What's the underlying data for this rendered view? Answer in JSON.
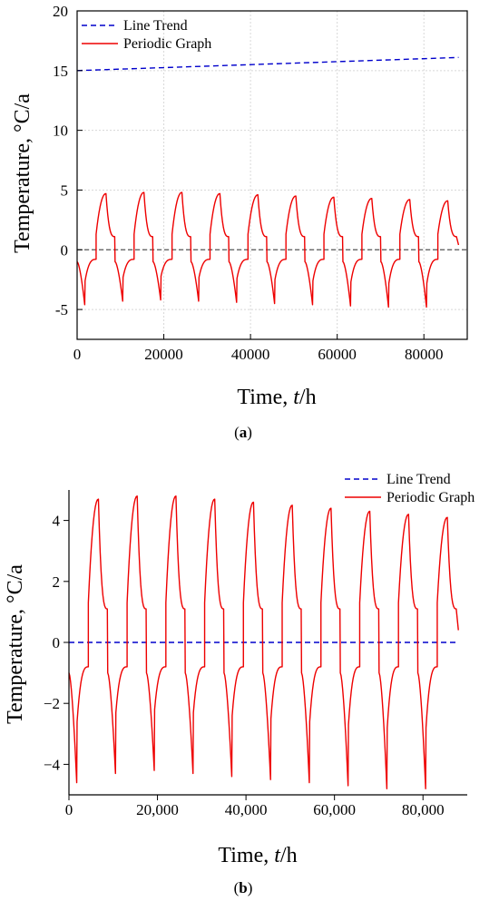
{
  "chart_data": [
    {
      "type": "line",
      "panel": "a",
      "caption_open": "(",
      "caption_letter": "a",
      "caption_close": ")",
      "xlabel_prefix": "Time, ",
      "xlabel_var": "t",
      "xlabel_suffix": "/h",
      "ylabel": "Temperature, °C/a",
      "xlim": [
        0,
        90000
      ],
      "ylim": [
        -7.5,
        20
      ],
      "xticks": [
        0,
        20000,
        40000,
        60000,
        80000
      ],
      "xtick_labels": [
        "0",
        "20000",
        "40000",
        "60000",
        "80000"
      ],
      "yticks": [
        -5,
        0,
        5,
        10,
        15,
        20
      ],
      "ytick_labels": [
        "-5",
        "0",
        "5",
        "10",
        "15",
        "20"
      ],
      "grid": true,
      "legend_position": "top-left",
      "zero_line": true,
      "colors": {
        "trend": "#0000cc",
        "periodic": "#ee0000",
        "zero": "#555555",
        "grid": "#d8d8d8"
      },
      "series": [
        {
          "name": "Line Trend",
          "style": "dashed",
          "x": [
            0,
            88000
          ],
          "y": [
            15.0,
            16.1
          ]
        },
        {
          "name": "Periodic Graph",
          "style": "solid",
          "period": 8760,
          "x_end": 88000,
          "cycle_peaks": [
            4.7,
            4.8,
            4.8,
            4.7,
            4.6,
            4.5,
            4.4,
            4.3,
            4.2,
            4.1
          ],
          "cycle_troughs": [
            -4.6,
            -4.3,
            -4.2,
            -4.3,
            -4.4,
            -4.5,
            -4.6,
            -4.7,
            -4.8,
            -4.8
          ],
          "plateau_high": 1.1,
          "plateau_low": -0.8
        }
      ]
    },
    {
      "type": "line",
      "panel": "b",
      "caption_open": "(",
      "caption_letter": "b",
      "caption_close": ")",
      "xlabel_prefix": "Time, ",
      "xlabel_var": "t",
      "xlabel_suffix": "/h",
      "ylabel": "Temperature, °C/a",
      "xlim": [
        0,
        90000
      ],
      "ylim": [
        -5,
        5
      ],
      "xticks": [
        0,
        20000,
        40000,
        60000,
        80000
      ],
      "xtick_labels": [
        "0",
        "20,000",
        "40,000",
        "60,000",
        "80,000"
      ],
      "yticks": [
        -4,
        -2,
        0,
        2,
        4
      ],
      "ytick_labels": [
        "−4",
        "−2",
        "0",
        "2",
        "4"
      ],
      "grid": false,
      "legend_position": "top-right",
      "zero_line": false,
      "colors": {
        "trend": "#0000cc",
        "periodic": "#ee0000"
      },
      "series": [
        {
          "name": "Line Trend",
          "style": "dashed",
          "x": [
            0,
            88000
          ],
          "y": [
            0,
            0
          ]
        },
        {
          "name": "Periodic Graph",
          "style": "solid",
          "period": 8760,
          "x_end": 88000,
          "cycle_peaks": [
            4.7,
            4.8,
            4.8,
            4.7,
            4.6,
            4.5,
            4.4,
            4.3,
            4.2,
            4.1
          ],
          "cycle_troughs": [
            -4.6,
            -4.3,
            -4.2,
            -4.3,
            -4.4,
            -4.5,
            -4.6,
            -4.7,
            -4.8,
            -4.8
          ],
          "plateau_high": 1.1,
          "plateau_low": -0.8
        }
      ]
    }
  ]
}
